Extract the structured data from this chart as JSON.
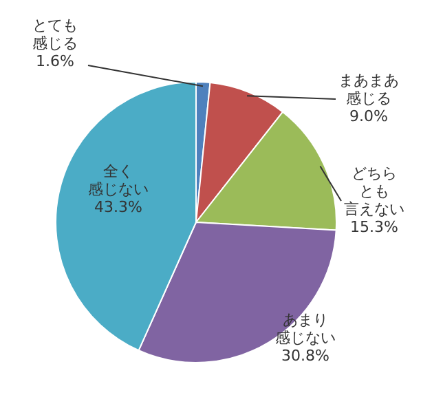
{
  "chart_data": {
    "type": "pie",
    "categories": [
      "とても感じる",
      "まあまあ感じる",
      "どちらとも言えない",
      "あまり感じない",
      "全く感じない"
    ],
    "values": [
      1.6,
      9.0,
      15.3,
      30.8,
      43.3
    ],
    "value_labels": [
      "1.6%",
      "9.0%",
      "15.3%",
      "30.8%",
      "43.3%"
    ],
    "colors": [
      "#4f81bd",
      "#c0504d",
      "#9bbb59",
      "#8064a2",
      "#4bacc6"
    ],
    "legend": false
  }
}
